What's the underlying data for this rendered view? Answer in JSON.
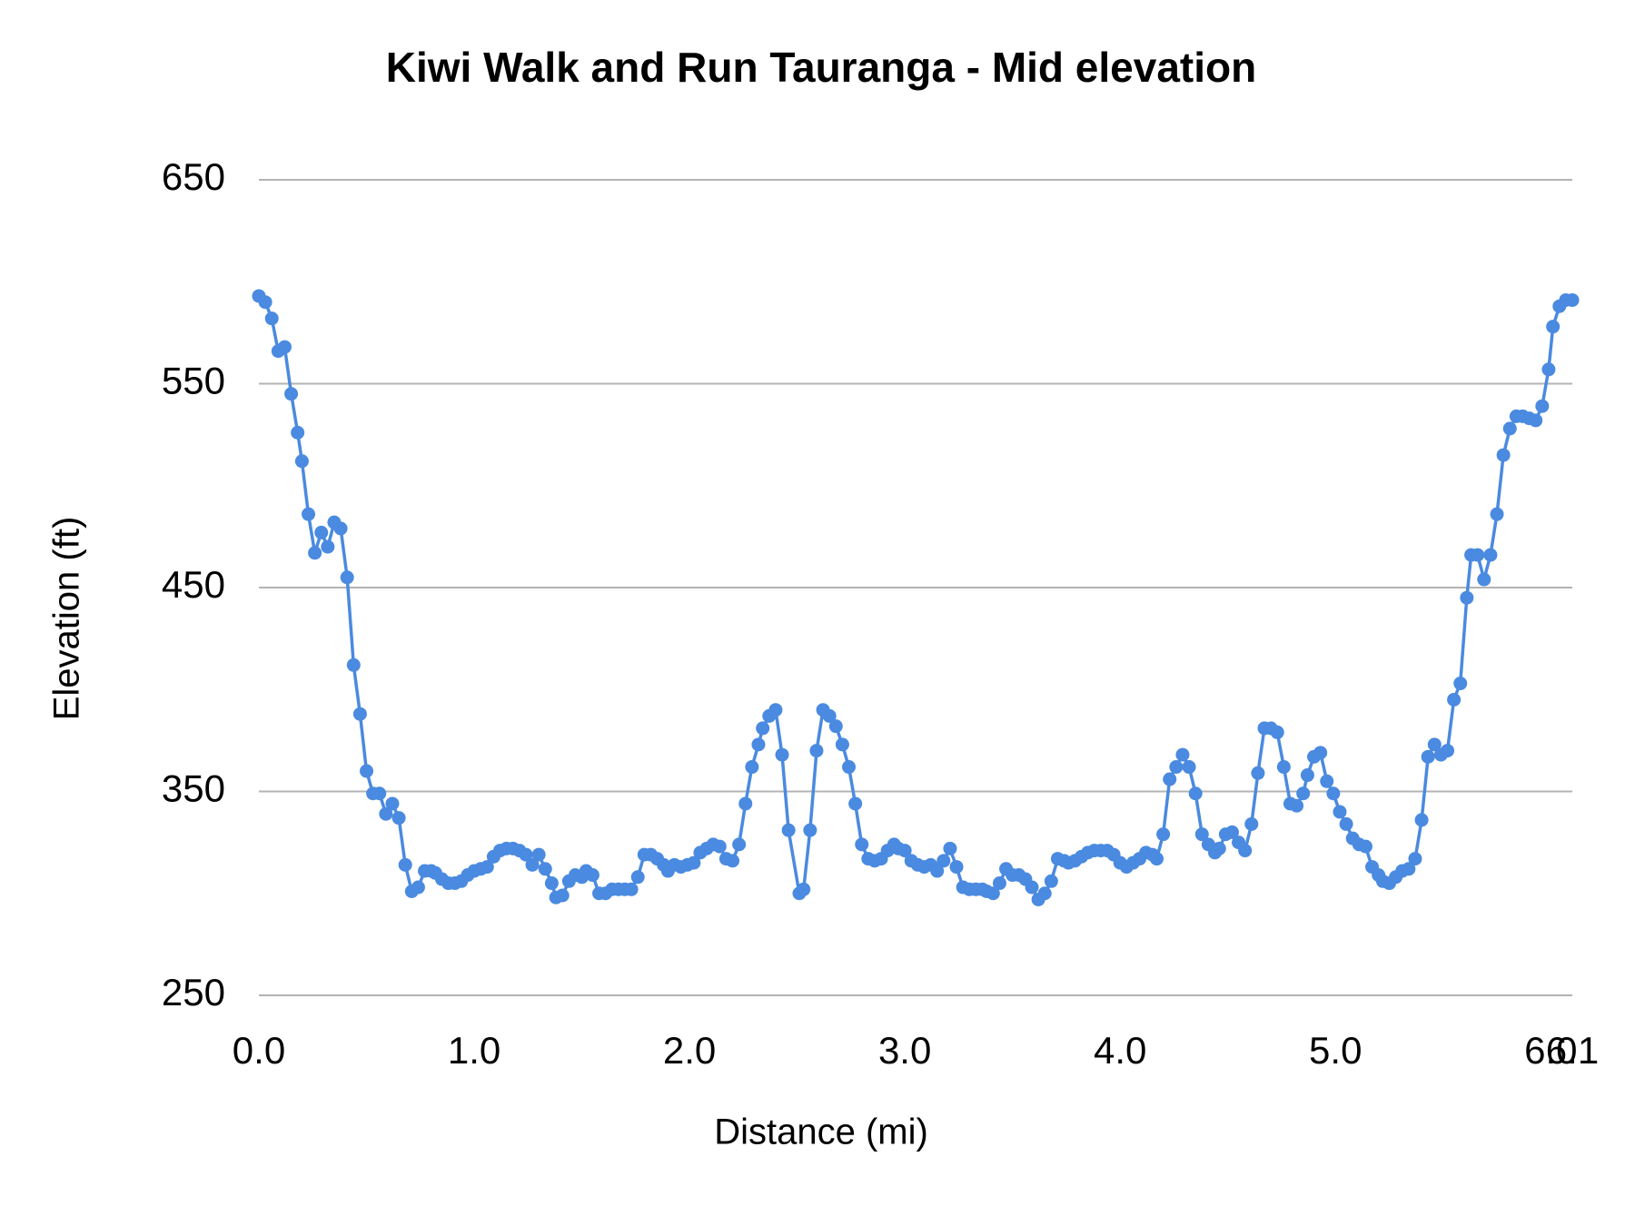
{
  "chart_data": {
    "type": "line",
    "title": "Kiwi Walk and Run Tauranga - Mid elevation",
    "x_label": "Distance (mi)",
    "y_label": "Elevation (ft)",
    "color": "#4a8ae0",
    "grid": true,
    "markers": true,
    "xlim": [
      0,
      6.1
    ],
    "ylim": [
      250,
      650
    ],
    "xticks": [
      {
        "value": 0,
        "label": "0.0"
      },
      {
        "value": 1,
        "label": "1.0"
      },
      {
        "value": 2,
        "label": "2.0"
      },
      {
        "value": 3,
        "label": "3.0"
      },
      {
        "value": 4,
        "label": "4.0"
      },
      {
        "value": 5,
        "label": "5.0"
      },
      {
        "value": 6,
        "label": "6.0"
      },
      6.1
    ],
    "yticks": [
      250,
      350,
      450,
      550,
      650
    ],
    "x": [
      0.0,
      0.03,
      0.06,
      0.09,
      0.12,
      0.15,
      0.18,
      0.2,
      0.23,
      0.26,
      0.29,
      0.32,
      0.35,
      0.38,
      0.41,
      0.44,
      0.47,
      0.5,
      0.53,
      0.56,
      0.59,
      0.62,
      0.65,
      0.68,
      0.71,
      0.74,
      0.77,
      0.8,
      0.82,
      0.85,
      0.88,
      0.91,
      0.94,
      0.97,
      1.0,
      1.03,
      1.06,
      1.09,
      1.12,
      1.15,
      1.18,
      1.21,
      1.24,
      1.27,
      1.3,
      1.33,
      1.36,
      1.38,
      1.41,
      1.44,
      1.47,
      1.5,
      1.52,
      1.55,
      1.58,
      1.61,
      1.64,
      1.67,
      1.7,
      1.73,
      1.76,
      1.79,
      1.82,
      1.85,
      1.88,
      1.9,
      1.93,
      1.96,
      1.99,
      2.02,
      2.05,
      2.08,
      2.11,
      2.14,
      2.17,
      2.2,
      2.23,
      2.26,
      2.29,
      2.32,
      2.34,
      2.37,
      2.4,
      2.43,
      2.46,
      2.51,
      2.53,
      2.56,
      2.59,
      2.62,
      2.65,
      2.68,
      2.71,
      2.74,
      2.77,
      2.8,
      2.83,
      2.86,
      2.89,
      2.92,
      2.95,
      2.97,
      3.0,
      3.03,
      3.06,
      3.09,
      3.12,
      3.15,
      3.18,
      3.21,
      3.24,
      3.27,
      3.3,
      3.33,
      3.36,
      3.38,
      3.41,
      3.44,
      3.47,
      3.5,
      3.53,
      3.56,
      3.59,
      3.62,
      3.65,
      3.68,
      3.71,
      3.74,
      3.76,
      3.79,
      3.82,
      3.85,
      3.88,
      3.91,
      3.94,
      3.97,
      4.0,
      4.03,
      4.06,
      4.09,
      4.12,
      4.15,
      4.17,
      4.2,
      4.23,
      4.26,
      4.29,
      4.32,
      4.35,
      4.38,
      4.41,
      4.44,
      4.46,
      4.49,
      4.52,
      4.55,
      4.58,
      4.61,
      4.64,
      4.67,
      4.7,
      4.73,
      4.76,
      4.79,
      4.82,
      4.85,
      4.87,
      4.9,
      4.93,
      4.96,
      4.99,
      5.02,
      5.05,
      5.08,
      5.11,
      5.14,
      5.17,
      5.2,
      5.22,
      5.25,
      5.28,
      5.31,
      5.34,
      5.37,
      5.4,
      5.43,
      5.46,
      5.49,
      5.52,
      5.55,
      5.58,
      5.61,
      5.63,
      5.66,
      5.69,
      5.72,
      5.75,
      5.78,
      5.81,
      5.84,
      5.87,
      5.9,
      5.93,
      5.96,
      5.99,
      6.01,
      6.04,
      6.07,
      6.1
    ],
    "values": [
      593,
      590,
      582,
      566,
      568,
      545,
      526,
      512,
      486,
      467,
      477,
      470,
      482,
      479,
      455,
      412,
      388,
      360,
      349,
      349,
      339,
      344,
      337,
      314,
      301,
      303,
      311,
      311,
      310,
      307,
      305,
      305,
      306,
      309,
      311,
      312,
      313,
      318,
      321,
      322,
      322,
      321,
      319,
      314,
      319,
      312,
      305,
      298,
      299,
      306,
      309,
      308,
      311,
      309,
      300,
      300,
      302,
      302,
      302,
      302,
      308,
      319,
      319,
      317,
      314,
      311,
      314,
      313,
      314,
      315,
      320,
      322,
      324,
      323,
      317,
      316,
      324,
      344,
      362,
      373,
      381,
      387,
      390,
      368,
      331,
      300,
      302,
      331,
      370,
      390,
      387,
      382,
      373,
      362,
      344,
      324,
      317,
      316,
      317,
      321,
      324,
      322,
      321,
      316,
      314,
      313,
      314,
      311,
      316,
      322,
      313,
      303,
      302,
      302,
      302,
      301,
      300,
      305,
      312,
      309,
      309,
      307,
      303,
      297,
      300,
      306,
      317,
      316,
      315,
      316,
      318,
      320,
      321,
      321,
      321,
      319,
      315,
      313,
      315,
      317,
      320,
      319,
      317,
      329,
      356,
      362,
      368,
      362,
      349,
      329,
      324,
      320,
      322,
      329,
      330,
      325,
      321,
      334,
      359,
      381,
      381,
      379,
      362,
      344,
      343,
      349,
      358,
      367,
      369,
      355,
      349,
      340,
      334,
      327,
      324,
      323,
      313,
      309,
      306,
      305,
      308,
      311,
      312,
      317,
      336,
      367,
      373,
      368,
      370,
      395,
      403,
      445,
      466,
      466,
      454,
      466,
      486,
      515,
      528,
      534,
      534,
      533,
      532,
      539,
      557,
      578,
      588,
      591,
      591
    ]
  }
}
